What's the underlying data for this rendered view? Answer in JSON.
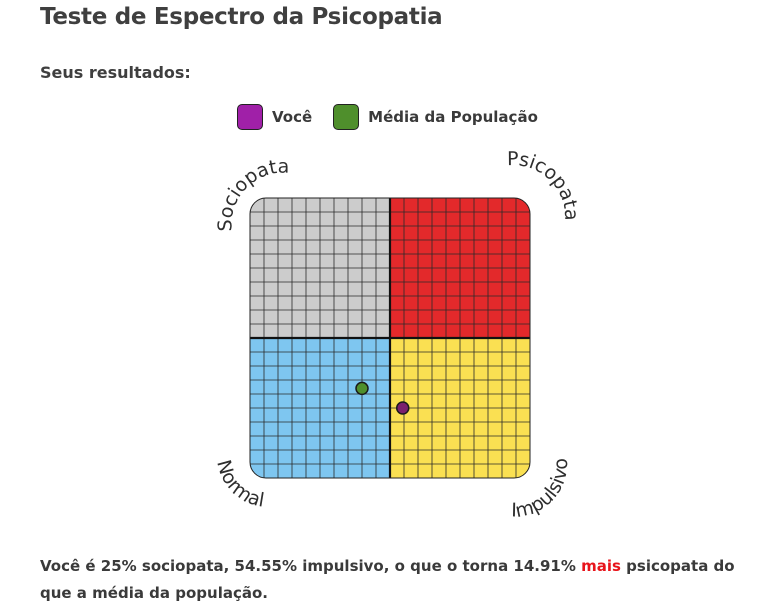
{
  "page": {
    "title": "Teste de Espectro da Psicopatia",
    "subtitle": "Seus resultados:"
  },
  "legend": {
    "items": [
      {
        "label": "Você",
        "color": "#a020a8"
      },
      {
        "label": "Média da População",
        "color": "#4f8f2c"
      }
    ]
  },
  "chart_data": {
    "type": "scatter",
    "quadrant_labels": {
      "top_left": "Sociopata",
      "top_right": "Psicopata",
      "bottom_left": "Normal",
      "bottom_right": "Impulsivo"
    },
    "quadrant_colors": {
      "top_left": "#cccccc",
      "top_right": "#e3292b",
      "bottom_left": "#7ec6f0",
      "bottom_right": "#fae052"
    },
    "xlim": [
      0,
      100
    ],
    "ylim": [
      0,
      100
    ],
    "grid_divisions": 20,
    "points": [
      {
        "series": "Você",
        "x": 54.55,
        "y": 25,
        "color": "#7a1f6e"
      },
      {
        "series": "Média da População",
        "x": 40,
        "y": 32,
        "color": "#4f8f2c"
      }
    ]
  },
  "summary": {
    "before": "Você é 25% sociopata, 54.55% impulsivo, o que o torna 14.91% ",
    "highlight": "mais",
    "after": " psicopata do que a média da população."
  }
}
